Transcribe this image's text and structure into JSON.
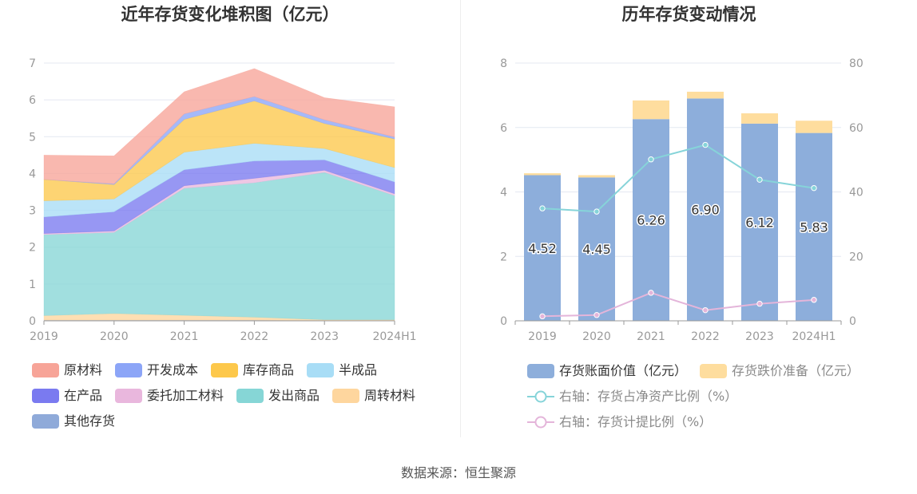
{
  "chart_data": [
    {
      "type": "area",
      "stacked": true,
      "title": "近年存货变化堆积图（亿元）",
      "categories": [
        "2019",
        "2020",
        "2021",
        "2022",
        "2023",
        "2024H1"
      ],
      "ylim": [
        0,
        7
      ],
      "yticks": [
        0,
        1,
        2,
        3,
        4,
        5,
        6,
        7
      ],
      "grid": true,
      "legend_position": "bottom",
      "series": [
        {
          "name": "原材料",
          "color": "#f7a498",
          "values": [
            0.66,
            0.76,
            0.6,
            0.76,
            0.6,
            0.82
          ]
        },
        {
          "name": "开发成本",
          "color": "#8ca5f7",
          "values": [
            0.0,
            0.02,
            0.15,
            0.12,
            0.1,
            0.05
          ]
        },
        {
          "name": "库存商品",
          "color": "#fdc84b",
          "values": [
            0.58,
            0.39,
            0.89,
            1.15,
            0.68,
            0.78
          ]
        },
        {
          "name": "半成品",
          "color": "#a8ddf6",
          "values": [
            0.44,
            0.35,
            0.48,
            0.48,
            0.31,
            0.39
          ]
        },
        {
          "name": "在产品",
          "color": "#7a7af0",
          "values": [
            0.45,
            0.52,
            0.43,
            0.47,
            0.28,
            0.32
          ]
        },
        {
          "name": "委托加工材料",
          "color": "#e9b7dd",
          "values": [
            0.03,
            0.04,
            0.07,
            0.12,
            0.06,
            0.05
          ]
        },
        {
          "name": "发出商品",
          "color": "#86d6d6",
          "values": [
            2.2,
            2.2,
            3.45,
            3.65,
            4.0,
            3.37
          ]
        },
        {
          "name": "周转材料",
          "color": "#fed69e",
          "values": [
            0.12,
            0.18,
            0.13,
            0.08,
            0.02,
            0.02
          ]
        },
        {
          "name": "其他存货",
          "color": "#8faad9",
          "values": [
            0.02,
            0.02,
            0.02,
            0.02,
            0.01,
            0.01
          ]
        }
      ]
    },
    {
      "type": "bar",
      "bar_mode": "stacked",
      "title": "历年存货变动情况",
      "categories": [
        "2019",
        "2020",
        "2021",
        "2022",
        "2023",
        "2024H1"
      ],
      "ylim": [
        0,
        8
      ],
      "yticks": [
        0,
        2,
        4,
        6,
        8
      ],
      "y2lim": [
        0,
        80
      ],
      "y2ticks": [
        0,
        20,
        40,
        60,
        80
      ],
      "grid": true,
      "legend_position": "bottom",
      "series": [
        {
          "name": "存货账面价值（亿元）",
          "type": "bar",
          "axis": "left",
          "color": "#8daedb",
          "values": [
            4.52,
            4.45,
            6.26,
            6.9,
            6.12,
            5.83
          ],
          "labels": [
            "4.52",
            "4.45",
            "6.26",
            "6.90",
            "6.12",
            "5.83"
          ]
        },
        {
          "name": "存货跌价准备（亿元）",
          "type": "bar",
          "axis": "left",
          "color": "#fedd9e",
          "values": [
            0.06,
            0.07,
            0.58,
            0.21,
            0.32,
            0.38
          ]
        },
        {
          "name": "右轴：存货占净资产比例（%）",
          "type": "line",
          "axis": "right",
          "color": "#86d4d9",
          "values": [
            34.9,
            33.9,
            50.1,
            54.6,
            43.8,
            41.2
          ]
        },
        {
          "name": "右轴：存货计提比例（%）",
          "type": "line",
          "axis": "right",
          "color": "#e4b5da",
          "values": [
            1.4,
            1.8,
            8.7,
            3.3,
            5.3,
            6.5
          ]
        }
      ]
    }
  ],
  "footer": {
    "source": "数据来源：恒生聚源"
  }
}
